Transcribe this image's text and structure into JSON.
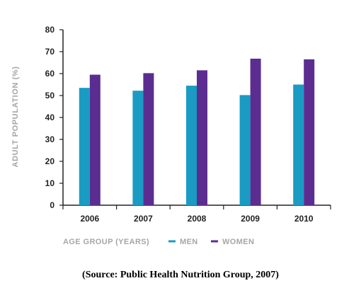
{
  "chart_data": {
    "type": "bar",
    "categories": [
      "2006",
      "2007",
      "2008",
      "2009",
      "2010"
    ],
    "series": [
      {
        "name": "MEN",
        "values": [
          53.5,
          52.2,
          54.5,
          50.2,
          55.0
        ]
      },
      {
        "name": "WOMEN",
        "values": [
          59.5,
          60.2,
          61.5,
          66.8,
          66.5
        ]
      }
    ],
    "ylabel": "ADULT POPULATION (%)",
    "ylim": [
      0,
      80
    ],
    "yticks": [
      "0",
      "10",
      "20",
      "30",
      "40",
      "50",
      "60",
      "70",
      "80"
    ],
    "grid": false,
    "legend": {
      "title": "AGE GROUP (YEARS)",
      "placement": "bottom-left"
    },
    "colors": {
      "MEN": "#1a9bc4",
      "WOMEN": "#5b2d91",
      "axis": "#222222",
      "label": "#a6a6a6"
    }
  },
  "source": "(Source: Public Health Nutrition Group, 2007)"
}
